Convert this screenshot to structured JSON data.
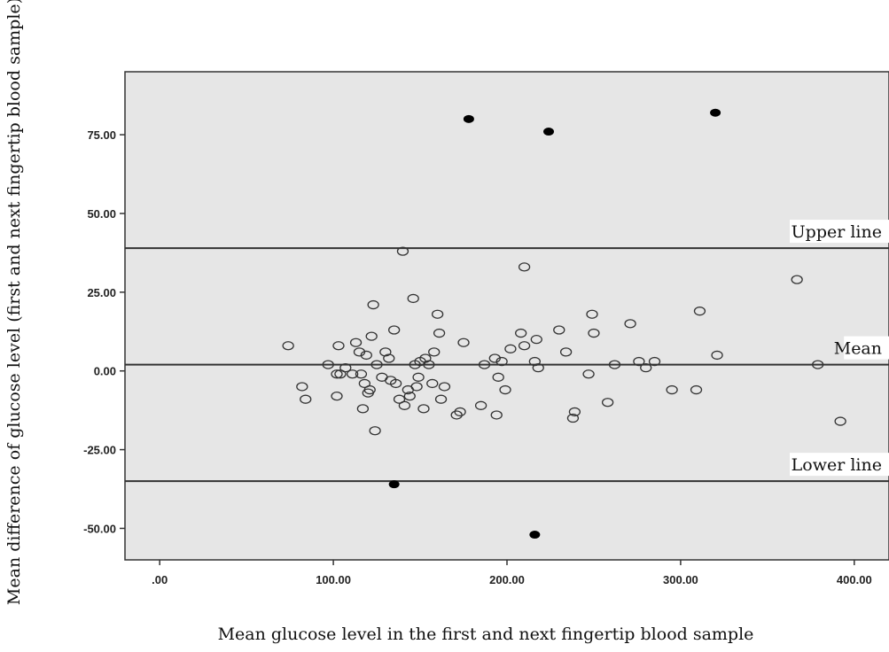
{
  "chart_data": {
    "type": "scatter",
    "title": "",
    "xlabel": "Mean glucose level in the first and next fingertip blood sample",
    "ylabel": "Mean difference of glucose level (first and next fingertip blood sample)",
    "xlim": [
      -20,
      420
    ],
    "ylim": [
      -60,
      95
    ],
    "xticks": [
      0,
      100,
      200,
      300,
      400
    ],
    "xtick_labels": [
      ".00",
      "100.00",
      "200.00",
      "300.00",
      "400.00"
    ],
    "yticks": [
      -50,
      -25,
      0,
      25,
      50,
      75
    ],
    "ytick_labels": [
      "-50.00",
      "-25.00",
      "0.00",
      "25.00",
      "50.00",
      "75.00"
    ],
    "grid": false,
    "reference_lines": [
      {
        "label": "Upper line",
        "y": 39
      },
      {
        "label": "Mean",
        "y": 2
      },
      {
        "label": "Lower line",
        "y": -35
      }
    ],
    "series": [
      {
        "marker": "open-circle",
        "color": "#333333",
        "points": [
          [
            74,
            8
          ],
          [
            82,
            -5
          ],
          [
            84,
            -9
          ],
          [
            97,
            2
          ],
          [
            102,
            -1
          ],
          [
            102,
            -8
          ],
          [
            103,
            8
          ],
          [
            104,
            -1
          ],
          [
            107,
            1
          ],
          [
            111,
            -1
          ],
          [
            113,
            9
          ],
          [
            115,
            6
          ],
          [
            116,
            -1
          ],
          [
            117,
            -12
          ],
          [
            118,
            -4
          ],
          [
            119,
            5
          ],
          [
            120,
            -7
          ],
          [
            121,
            -6
          ],
          [
            122,
            11
          ],
          [
            123,
            21
          ],
          [
            124,
            -19
          ],
          [
            125,
            2
          ],
          [
            128,
            -2
          ],
          [
            130,
            6
          ],
          [
            132,
            4
          ],
          [
            133,
            -3
          ],
          [
            135,
            13
          ],
          [
            136,
            -4
          ],
          [
            138,
            -9
          ],
          [
            140,
            38
          ],
          [
            141,
            -11
          ],
          [
            143,
            -6
          ],
          [
            144,
            -8
          ],
          [
            146,
            23
          ],
          [
            147,
            2
          ],
          [
            148,
            -5
          ],
          [
            149,
            -2
          ],
          [
            150,
            3
          ],
          [
            152,
            -12
          ],
          [
            153,
            4
          ],
          [
            155,
            2
          ],
          [
            157,
            -4
          ],
          [
            158,
            6
          ],
          [
            160,
            18
          ],
          [
            161,
            12
          ],
          [
            162,
            -9
          ],
          [
            164,
            -5
          ],
          [
            171,
            -14
          ],
          [
            173,
            -13
          ],
          [
            175,
            9
          ],
          [
            185,
            -11
          ],
          [
            187,
            2
          ],
          [
            193,
            4
          ],
          [
            194,
            -14
          ],
          [
            195,
            -2
          ],
          [
            197,
            3
          ],
          [
            199,
            -6
          ],
          [
            202,
            7
          ],
          [
            208,
            12
          ],
          [
            210,
            33
          ],
          [
            210,
            8
          ],
          [
            216,
            3
          ],
          [
            217,
            10
          ],
          [
            218,
            1
          ],
          [
            230,
            13
          ],
          [
            234,
            6
          ],
          [
            238,
            -15
          ],
          [
            239,
            -13
          ],
          [
            247,
            -1
          ],
          [
            249,
            18
          ],
          [
            250,
            12
          ],
          [
            258,
            -10
          ],
          [
            262,
            2
          ],
          [
            271,
            15
          ],
          [
            276,
            3
          ],
          [
            280,
            1
          ],
          [
            285,
            3
          ],
          [
            295,
            -6
          ],
          [
            309,
            -6
          ],
          [
            311,
            19
          ],
          [
            321,
            5
          ],
          [
            367,
            29
          ],
          [
            379,
            2
          ],
          [
            392,
            -16
          ]
        ]
      },
      {
        "marker": "filled-circle",
        "color": "#000000",
        "points": [
          [
            178,
            80
          ],
          [
            224,
            76
          ],
          [
            320,
            82
          ],
          [
            135,
            -36
          ],
          [
            216,
            -52
          ]
        ]
      }
    ]
  }
}
